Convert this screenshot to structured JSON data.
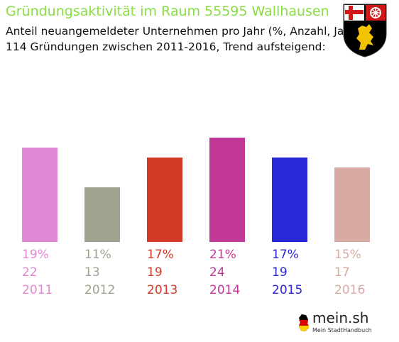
{
  "title": "Gründungsaktivität im Raum 55595 Wallhausen",
  "subtitle_line1": "Anteil neuangemeldeter Unternehmen pro Jahr (%, Anzahl, Jahr)",
  "subtitle_line2": "114 Gründungen zwischen 2011-2016, Trend aufsteigend:",
  "crest_icon": "rhineland-palatinate-coat-of-arms-icon",
  "brand": {
    "name": "mein.sh",
    "tagline": "Mein StadtHandbuch",
    "icon": "germany-map-icon"
  },
  "chart_data": {
    "type": "bar",
    "categories": [
      "2011",
      "2012",
      "2013",
      "2014",
      "2015",
      "2016"
    ],
    "values": [
      19,
      11,
      17,
      21,
      17,
      15
    ],
    "value_labels": [
      "19%",
      "11%",
      "17%",
      "21%",
      "17%",
      "15%"
    ],
    "counts": [
      "22",
      "13",
      "19",
      "24",
      "19",
      "17"
    ],
    "colors": [
      "#e088d4",
      "#a0a290",
      "#d43a28",
      "#c23896",
      "#2828d8",
      "#d8aaa4"
    ],
    "title": "Gründungsaktivität im Raum 55595 Wallhausen",
    "xlabel": "",
    "ylabel": "",
    "grid": false,
    "legend": "none"
  }
}
